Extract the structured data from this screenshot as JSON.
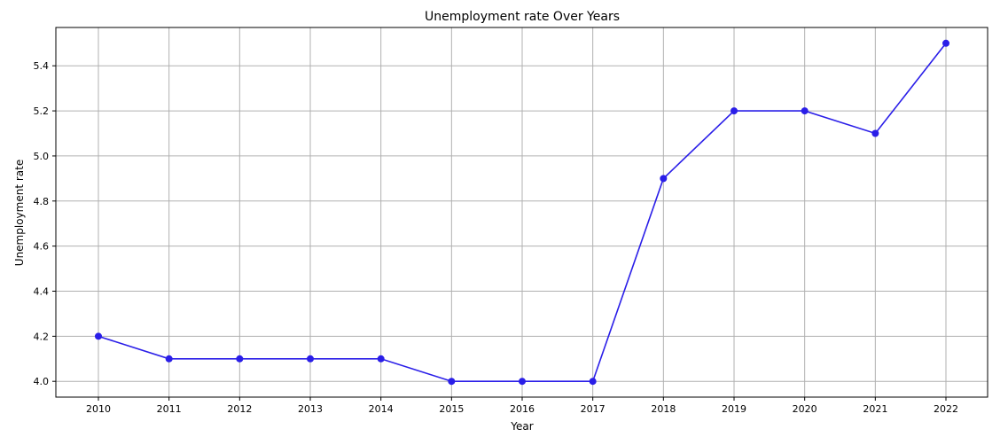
{
  "chart_data": {
    "type": "line",
    "title": "Unemployment rate Over Years",
    "xlabel": "Year",
    "ylabel": "Unemployment rate",
    "grid": true,
    "ylim": [
      3.93,
      5.57
    ],
    "yticks": [
      4.0,
      4.2,
      4.4,
      4.6,
      4.8,
      5.0,
      5.2,
      5.4
    ],
    "x": [
      "2010",
      "2011",
      "2012",
      "2013",
      "2014",
      "2015",
      "2016",
      "2017",
      "2018",
      "2019",
      "2020",
      "2021",
      "2022"
    ],
    "series": [
      {
        "values": [
          4.2,
          4.1,
          4.1,
          4.1,
          4.1,
          4.0,
          4.0,
          4.0,
          4.9,
          5.2,
          5.2,
          5.1,
          5.5
        ],
        "color": "#2a1ee8",
        "marker": "circle"
      }
    ]
  }
}
